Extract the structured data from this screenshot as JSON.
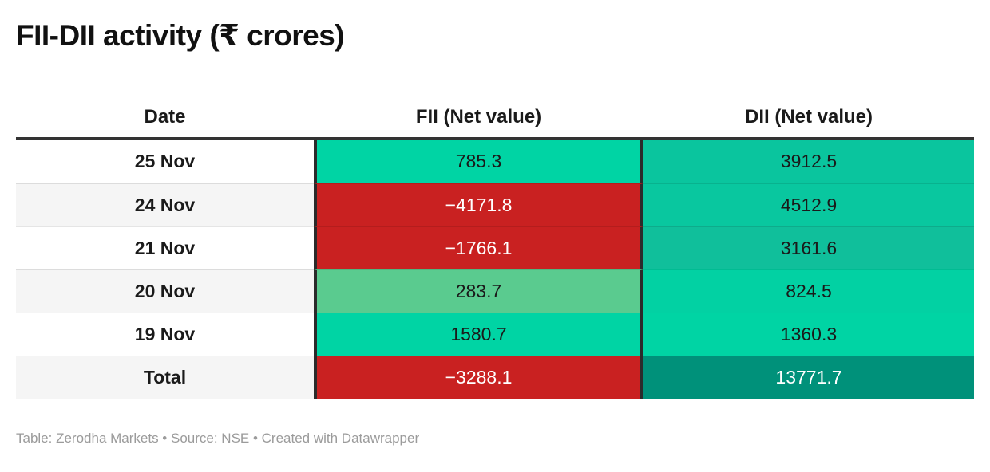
{
  "title": "FII-DII activity (₹ crores)",
  "footer": {
    "text": "Table: Zerodha Markets • Source: NSE • Created with Datawrapper"
  },
  "colors": {
    "positive_green": "#00D4A4",
    "muted_green": "#5ACB8F",
    "negative_red": "#C92121",
    "total_teal": "#00917A",
    "header_border": "#333333",
    "row_alt_bg": "#F5F5F5",
    "footer_gray": "#9B9B9B",
    "text_dark": "#1a1a1a",
    "text_light": "#ffffff"
  },
  "chart_data": {
    "type": "table",
    "title": "FII-DII activity (₹ crores)",
    "columns": [
      "Date",
      "FII (Net value)",
      "DII (Net value)"
    ],
    "rows": [
      {
        "date": "25 Nov",
        "fii": 785.3,
        "dii": 3912.5
      },
      {
        "date": "24 Nov",
        "fii": -4171.8,
        "dii": 4512.9
      },
      {
        "date": "21 Nov",
        "fii": -1766.1,
        "dii": 3161.6
      },
      {
        "date": "20 Nov",
        "fii": 283.7,
        "dii": 824.5
      },
      {
        "date": "19 Nov",
        "fii": 1580.7,
        "dii": 1360.3
      },
      {
        "date": "Total",
        "fii": -3288.1,
        "dii": 13771.7
      }
    ],
    "notes": "Cells are heatmap-colored: green for positive values, red for negative values; Total DII is dark teal."
  },
  "table": {
    "headers": {
      "date": "Date",
      "fii": "FII (Net value)",
      "dii": "DII (Net value)"
    },
    "rows": [
      {
        "date": "25 Nov",
        "row_bg": "#ffffff",
        "fii": "785.3",
        "fii_bg": "#00D4A4",
        "fii_color": "#1a1a1a",
        "dii": "3912.5",
        "dii_bg": "#0AC59E",
        "dii_color": "#1a1a1a"
      },
      {
        "date": "24 Nov",
        "row_bg": "#F5F5F5",
        "fii": "−4171.8",
        "fii_bg": "#C92121",
        "fii_color": "#ffffff",
        "dii": "4512.9",
        "dii_bg": "#09C79F",
        "dii_color": "#1a1a1a"
      },
      {
        "date": "21 Nov",
        "row_bg": "#ffffff",
        "fii": "−1766.1",
        "fii_bg": "#C92121",
        "fii_color": "#ffffff",
        "dii": "3161.6",
        "dii_bg": "#10BF9B",
        "dii_color": "#1a1a1a"
      },
      {
        "date": "20 Nov",
        "row_bg": "#F5F5F5",
        "fii": "283.7",
        "fii_bg": "#5ACB8F",
        "fii_color": "#1a1a1a",
        "dii": "824.5",
        "dii_bg": "#02D1A3",
        "dii_color": "#1a1a1a"
      },
      {
        "date": "19 Nov",
        "row_bg": "#ffffff",
        "fii": "1580.7",
        "fii_bg": "#00D4A4",
        "fii_color": "#1a1a1a",
        "dii": "1360.3",
        "dii_bg": "#00D4A4",
        "dii_color": "#1a1a1a"
      },
      {
        "date": "Total",
        "row_bg": "#F5F5F5",
        "fii": "−3288.1",
        "fii_bg": "#C92121",
        "fii_color": "#ffffff",
        "dii": "13771.7",
        "dii_bg": "#00917A",
        "dii_color": "#ffffff"
      }
    ]
  }
}
